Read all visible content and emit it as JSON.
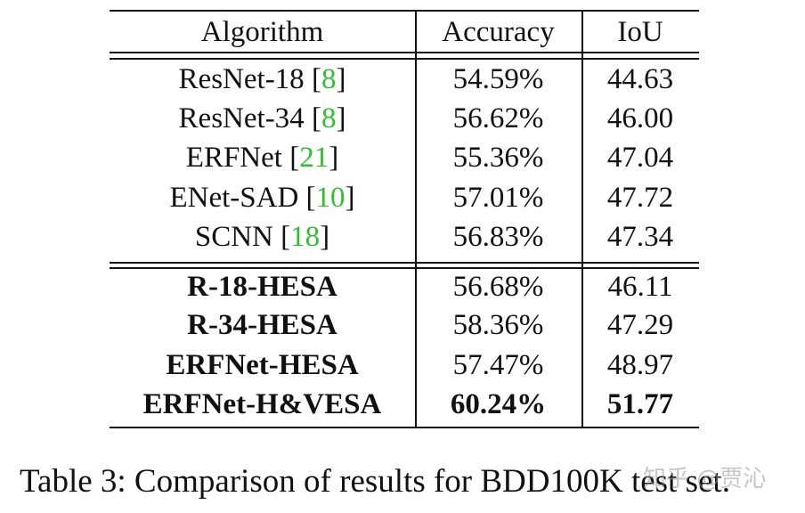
{
  "table": {
    "headers": {
      "algorithm": "Algorithm",
      "accuracy": "Accuracy",
      "iou": "IoU"
    },
    "baseline_rows": [
      {
        "name": "ResNet-18",
        "cite": "8",
        "accuracy": "54.59%",
        "iou": "44.63"
      },
      {
        "name": "ResNet-34",
        "cite": "8",
        "accuracy": "56.62%",
        "iou": "46.00"
      },
      {
        "name": "ERFNet",
        "cite": "21",
        "accuracy": "55.36%",
        "iou": "47.04"
      },
      {
        "name": "ENet-SAD",
        "cite": "10",
        "accuracy": "57.01%",
        "iou": "47.72"
      },
      {
        "name": "SCNN",
        "cite": "18",
        "accuracy": "56.83%",
        "iou": "47.34"
      }
    ],
    "proposed_rows": [
      {
        "name": "R-18-HESA",
        "accuracy": "56.68%",
        "iou": "46.11"
      },
      {
        "name": "R-34-HESA",
        "accuracy": "58.36%",
        "iou": "47.29"
      },
      {
        "name": "ERFNet-HESA",
        "accuracy": "57.47%",
        "iou": "48.97"
      },
      {
        "name": "ERFNet-H&VESA",
        "accuracy": "60.24%",
        "iou": "51.77"
      }
    ],
    "cite_color": "#2fbf2f"
  },
  "caption": "Table 3: Comparison of results for BDD100K test set.",
  "watermark": "知乎 @贾沁"
}
